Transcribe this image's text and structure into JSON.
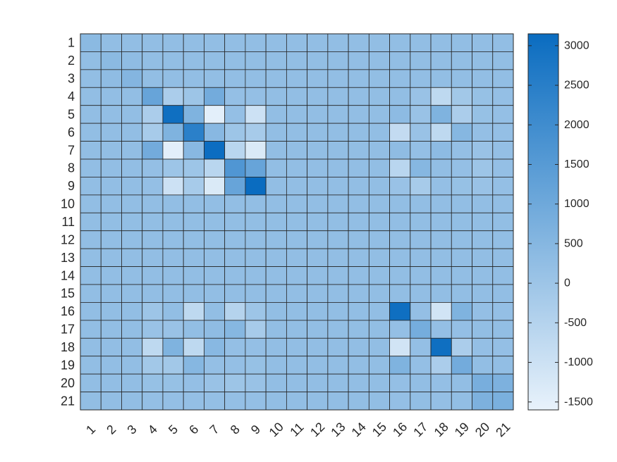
{
  "chart_data": {
    "type": "heatmap",
    "rows": [
      "1",
      "2",
      "3",
      "4",
      "5",
      "6",
      "7",
      "8",
      "9",
      "10",
      "11",
      "12",
      "13",
      "14",
      "15",
      "16",
      "17",
      "18",
      "19",
      "20",
      "21"
    ],
    "cols": [
      "1",
      "2",
      "3",
      "4",
      "5",
      "6",
      "7",
      "8",
      "9",
      "10",
      "11",
      "12",
      "13",
      "14",
      "15",
      "16",
      "17",
      "18",
      "19",
      "20",
      "21"
    ],
    "colorbar": {
      "range": [
        -1600,
        3150
      ],
      "ticks": [
        "3000",
        "2500",
        "2000",
        "1500",
        "1000",
        "500",
        "0",
        "-500",
        "-1000",
        "-1500"
      ],
      "tick_values": [
        3000,
        2500,
        2000,
        1500,
        1000,
        500,
        0,
        -500,
        -1000,
        -1500
      ],
      "colors": [
        "#e8f2fb",
        "#0a6cc0"
      ],
      "placement": "right"
    },
    "values": [
      [
        400,
        250,
        250,
        250,
        250,
        250,
        250,
        250,
        250,
        250,
        250,
        250,
        250,
        250,
        250,
        250,
        250,
        250,
        250,
        250,
        250
      ],
      [
        250,
        400,
        300,
        250,
        250,
        250,
        250,
        250,
        250,
        250,
        250,
        250,
        250,
        250,
        250,
        250,
        250,
        250,
        250,
        250,
        250
      ],
      [
        250,
        300,
        550,
        250,
        250,
        250,
        250,
        250,
        250,
        250,
        250,
        250,
        250,
        250,
        250,
        250,
        250,
        250,
        250,
        250,
        250
      ],
      [
        250,
        250,
        250,
        1150,
        -300,
        0,
        900,
        200,
        200,
        250,
        250,
        250,
        250,
        250,
        250,
        250,
        100,
        -700,
        -100,
        150,
        200
      ],
      [
        250,
        250,
        250,
        -300,
        3050,
        650,
        -1500,
        200,
        -1000,
        250,
        250,
        250,
        250,
        250,
        250,
        350,
        100,
        650,
        -300,
        150,
        200
      ],
      [
        250,
        250,
        250,
        -200,
        650,
        2450,
        450,
        0,
        -200,
        250,
        250,
        250,
        250,
        250,
        250,
        -800,
        100,
        -700,
        500,
        200,
        200
      ],
      [
        250,
        250,
        250,
        900,
        -1500,
        450,
        3100,
        -600,
        -1300,
        250,
        250,
        250,
        250,
        250,
        250,
        300,
        200,
        350,
        200,
        100,
        200
      ],
      [
        250,
        250,
        250,
        200,
        0,
        0,
        -600,
        1650,
        1150,
        250,
        250,
        250,
        250,
        250,
        250,
        -600,
        500,
        250,
        200,
        0,
        200
      ],
      [
        250,
        250,
        250,
        200,
        -1000,
        -200,
        -1300,
        1150,
        3150,
        250,
        250,
        250,
        250,
        250,
        250,
        100,
        -200,
        200,
        150,
        100,
        200
      ],
      [
        250,
        250,
        250,
        250,
        250,
        250,
        250,
        250,
        250,
        250,
        250,
        250,
        250,
        250,
        250,
        250,
        250,
        250,
        250,
        250,
        250
      ],
      [
        250,
        250,
        250,
        250,
        250,
        250,
        250,
        250,
        250,
        250,
        250,
        250,
        250,
        250,
        250,
        250,
        250,
        250,
        250,
        250,
        250
      ],
      [
        250,
        250,
        250,
        250,
        250,
        250,
        250,
        250,
        250,
        250,
        250,
        250,
        250,
        250,
        250,
        250,
        250,
        250,
        250,
        250,
        250
      ],
      [
        250,
        250,
        250,
        250,
        250,
        250,
        250,
        250,
        250,
        250,
        250,
        250,
        250,
        250,
        250,
        250,
        250,
        250,
        250,
        250,
        250
      ],
      [
        250,
        250,
        250,
        250,
        250,
        250,
        250,
        250,
        250,
        250,
        250,
        250,
        250,
        250,
        250,
        250,
        250,
        250,
        250,
        250,
        250
      ],
      [
        250,
        250,
        250,
        250,
        250,
        250,
        250,
        250,
        250,
        250,
        250,
        250,
        250,
        250,
        250,
        250,
        250,
        250,
        250,
        250,
        250
      ],
      [
        250,
        250,
        250,
        0,
        250,
        -700,
        250,
        -500,
        0,
        250,
        250,
        250,
        250,
        250,
        250,
        3050,
        200,
        -1100,
        650,
        200,
        200
      ],
      [
        250,
        250,
        250,
        100,
        100,
        250,
        300,
        500,
        -200,
        250,
        250,
        250,
        250,
        250,
        250,
        200,
        850,
        200,
        200,
        250,
        250
      ],
      [
        250,
        250,
        250,
        -700,
        650,
        -700,
        450,
        200,
        200,
        250,
        250,
        250,
        250,
        250,
        250,
        -1100,
        200,
        3050,
        -300,
        200,
        200
      ],
      [
        250,
        250,
        250,
        -100,
        -100,
        500,
        200,
        200,
        150,
        250,
        250,
        250,
        250,
        250,
        250,
        650,
        200,
        -300,
        900,
        250,
        250
      ],
      [
        250,
        250,
        250,
        150,
        150,
        200,
        100,
        0,
        100,
        250,
        250,
        250,
        250,
        250,
        250,
        200,
        250,
        200,
        250,
        800,
        700
      ],
      [
        250,
        250,
        250,
        200,
        200,
        200,
        200,
        200,
        200,
        250,
        250,
        250,
        250,
        250,
        250,
        200,
        250,
        200,
        250,
        700,
        750
      ]
    ]
  }
}
